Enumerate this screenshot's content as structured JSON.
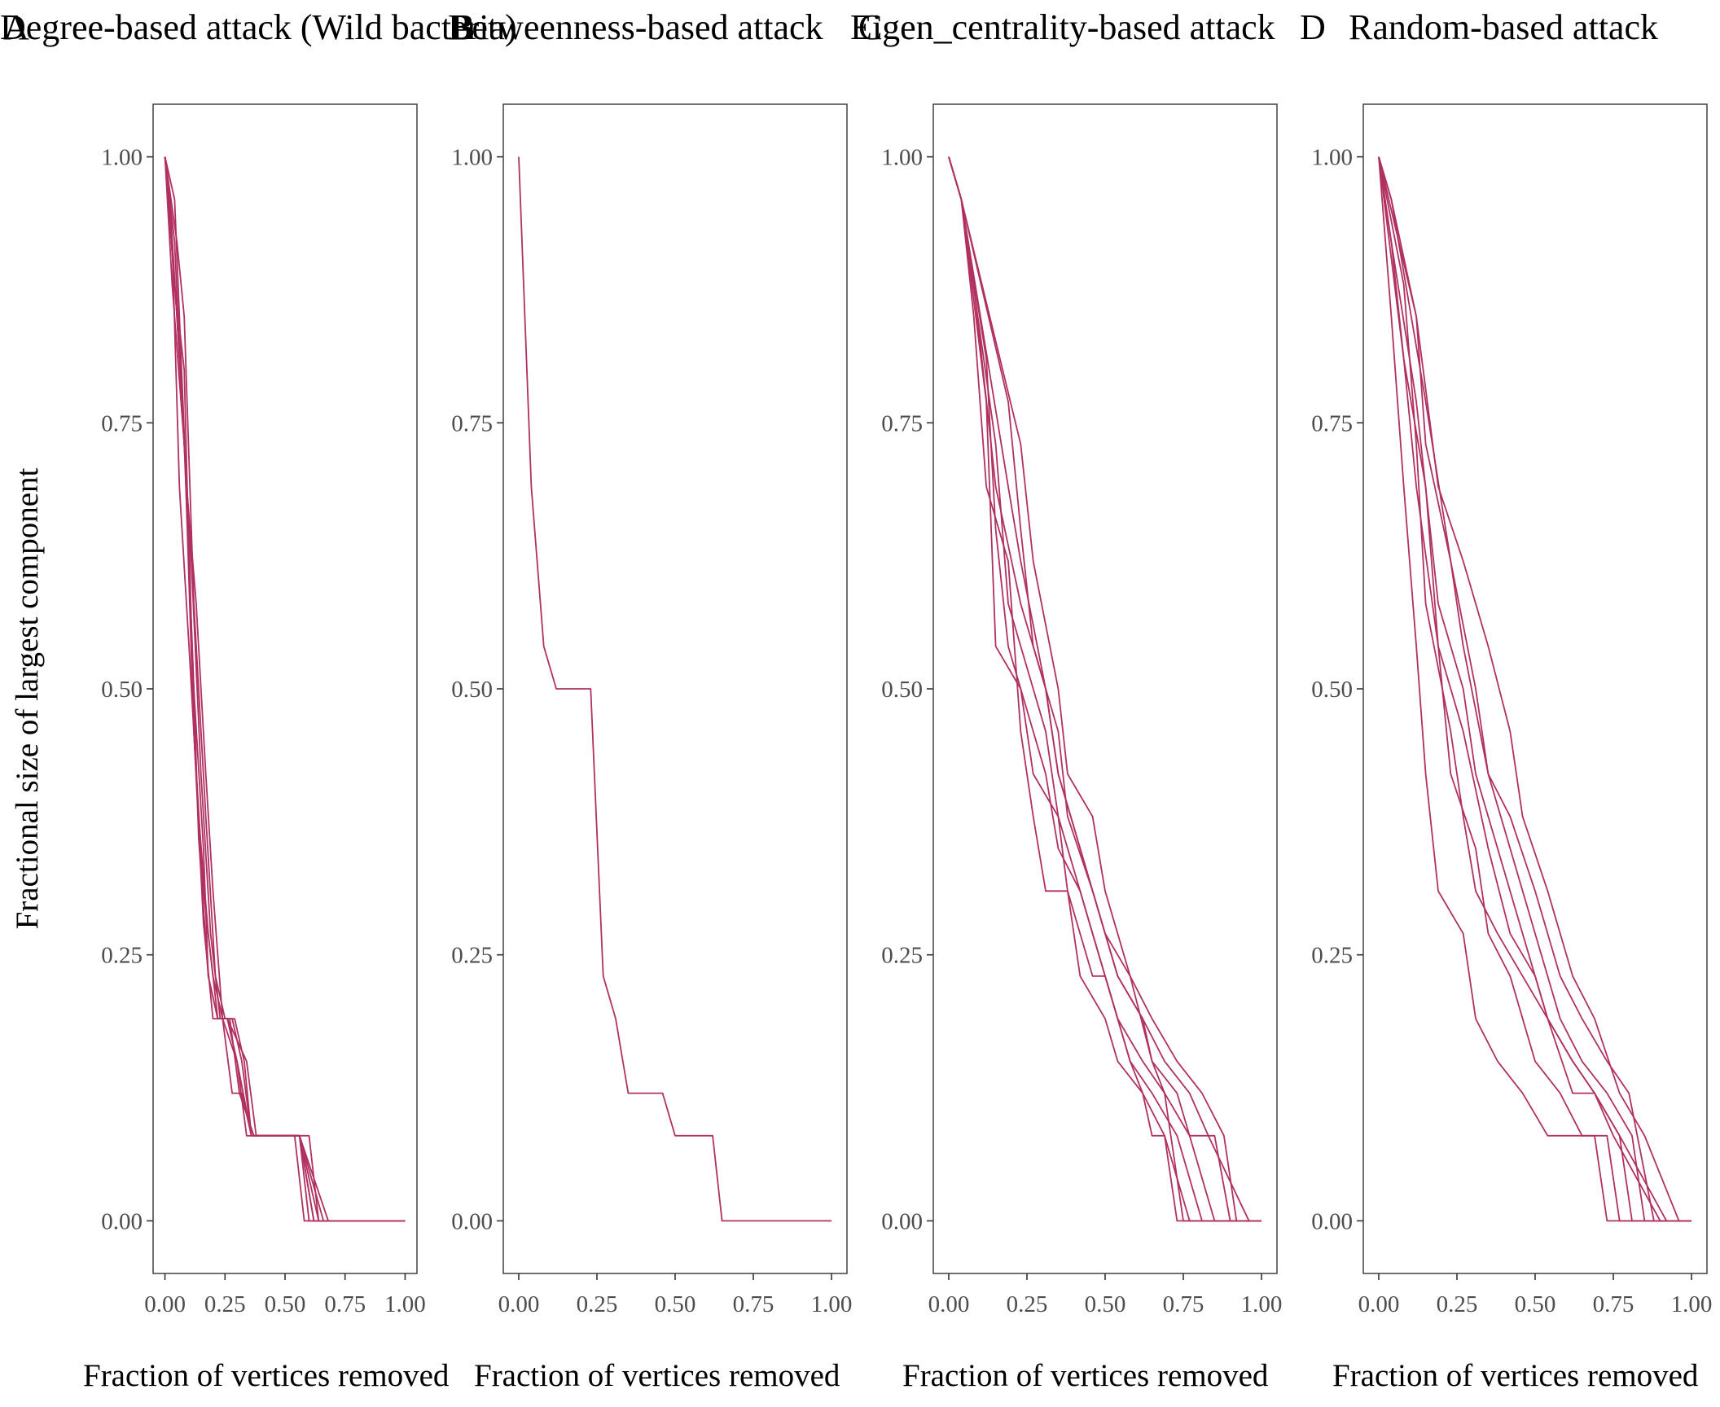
{
  "chart_data": [
    {
      "type": "line",
      "title": "Degree-based attack (Wild bacteria)",
      "tag": "A",
      "xlabel": "Fraction of vertices removed",
      "ylabel": "Fractional size of largest component",
      "xlim": [
        0,
        1
      ],
      "ylim": [
        0,
        1
      ],
      "x_ticks": [
        "0.00",
        "0.25",
        "0.50",
        "0.75",
        "1.00"
      ],
      "y_ticks": [
        "0.00",
        "0.25",
        "0.50",
        "0.75",
        "1.00"
      ],
      "grid": false,
      "color": "#b03060",
      "series": [
        {
          "x": [
            0,
            0.04,
            0.08,
            0.12,
            0.16,
            0.2,
            0.24,
            0.28,
            0.32,
            0.36,
            0.52,
            0.6,
            0.64,
            1.0
          ],
          "y": [
            1,
            0.96,
            0.74,
            0.46,
            0.28,
            0.19,
            0.19,
            0.12,
            0.12,
            0.08,
            0.08,
            0.08,
            0,
            0
          ]
        },
        {
          "x": [
            0,
            0.04,
            0.08,
            0.1,
            0.12,
            0.14,
            0.18,
            0.22,
            0.26,
            0.3,
            0.36,
            0.54,
            0.58,
            1.0
          ],
          "y": [
            1,
            0.88,
            0.8,
            0.62,
            0.5,
            0.36,
            0.23,
            0.19,
            0.19,
            0.15,
            0.08,
            0.08,
            0,
            0
          ]
        },
        {
          "x": [
            0,
            0.03,
            0.06,
            0.1,
            0.14,
            0.18,
            0.22,
            0.26,
            0.34,
            0.38,
            0.56,
            0.62,
            1.0
          ],
          "y": [
            1,
            0.92,
            0.69,
            0.54,
            0.38,
            0.27,
            0.19,
            0.19,
            0.15,
            0.08,
            0.08,
            0,
            0
          ]
        },
        {
          "x": [
            0,
            0.05,
            0.09,
            0.13,
            0.17,
            0.2,
            0.24,
            0.28,
            0.32,
            0.36,
            0.56,
            0.66,
            1.0
          ],
          "y": [
            1,
            0.85,
            0.69,
            0.58,
            0.42,
            0.31,
            0.19,
            0.19,
            0.15,
            0.08,
            0.08,
            0,
            0
          ]
        },
        {
          "x": [
            0,
            0.02,
            0.06,
            0.1,
            0.12,
            0.16,
            0.2,
            0.24,
            0.3,
            0.36,
            0.56,
            0.68,
            1.0
          ],
          "y": [
            1,
            0.96,
            0.81,
            0.65,
            0.46,
            0.31,
            0.23,
            0.19,
            0.15,
            0.08,
            0.08,
            0,
            0
          ]
        },
        {
          "x": [
            0,
            0.04,
            0.07,
            0.11,
            0.15,
            0.19,
            0.23,
            0.27,
            0.31,
            0.37,
            0.56,
            0.64,
            1.0
          ],
          "y": [
            1,
            0.92,
            0.77,
            0.62,
            0.42,
            0.27,
            0.19,
            0.19,
            0.12,
            0.08,
            0.08,
            0,
            0
          ]
        },
        {
          "x": [
            0,
            0.03,
            0.08,
            0.12,
            0.16,
            0.18,
            0.22,
            0.26,
            0.3,
            0.34,
            0.56,
            0.62,
            1.0
          ],
          "y": [
            1,
            0.88,
            0.73,
            0.5,
            0.35,
            0.23,
            0.19,
            0.19,
            0.15,
            0.08,
            0.08,
            0,
            0
          ]
        },
        {
          "x": [
            0,
            0.05,
            0.08,
            0.12,
            0.17,
            0.21,
            0.25,
            0.29,
            0.33,
            0.36,
            0.56,
            0.6,
            1.0
          ],
          "y": [
            1,
            0.92,
            0.85,
            0.58,
            0.38,
            0.23,
            0.19,
            0.19,
            0.15,
            0.08,
            0.08,
            0,
            0
          ]
        }
      ]
    },
    {
      "type": "line",
      "title": "Betweenness-based attack",
      "tag": "B",
      "xlabel": "Fraction of vertices removed",
      "xlim": [
        0,
        1
      ],
      "ylim": [
        0,
        1
      ],
      "x_ticks": [
        "0.00",
        "0.25",
        "0.50",
        "0.75",
        "1.00"
      ],
      "y_ticks": [
        "0.00",
        "0.25",
        "0.50",
        "0.75",
        "1.00"
      ],
      "grid": false,
      "color": "#b03060",
      "series": [
        {
          "x": [
            0,
            0.04,
            0.08,
            0.12,
            0.23,
            0.27,
            0.31,
            0.35,
            0.46,
            0.5,
            0.62,
            0.65,
            1.0
          ],
          "y": [
            1,
            0.69,
            0.54,
            0.5,
            0.5,
            0.23,
            0.19,
            0.12,
            0.12,
            0.08,
            0.08,
            0,
            0
          ]
        }
      ]
    },
    {
      "type": "line",
      "title": "Eigen_centrality-based attack",
      "tag": "C",
      "xlabel": "Fraction of vertices removed",
      "xlim": [
        0,
        1
      ],
      "ylim": [
        0,
        1
      ],
      "x_ticks": [
        "0.00",
        "0.25",
        "0.50",
        "0.75",
        "1.00"
      ],
      "y_ticks": [
        "0.00",
        "0.25",
        "0.50",
        "0.75",
        "1.00"
      ],
      "grid": false,
      "color": "#b03060",
      "series": [
        {
          "x": [
            0,
            0.04,
            0.08,
            0.12,
            0.19,
            0.23,
            0.27,
            0.31,
            0.38,
            0.42,
            0.5,
            0.54,
            0.62,
            0.65,
            0.69,
            0.73,
            1.0
          ],
          "y": [
            1,
            0.96,
            0.85,
            0.69,
            0.62,
            0.46,
            0.38,
            0.31,
            0.31,
            0.23,
            0.19,
            0.15,
            0.12,
            0.08,
            0.08,
            0,
            0
          ]
        },
        {
          "x": [
            0,
            0.04,
            0.12,
            0.15,
            0.23,
            0.27,
            0.35,
            0.38,
            0.46,
            0.5,
            0.58,
            0.62,
            0.69,
            0.77,
            1.0
          ],
          "y": [
            1,
            0.96,
            0.77,
            0.54,
            0.5,
            0.42,
            0.38,
            0.31,
            0.23,
            0.23,
            0.15,
            0.12,
            0.08,
            0,
            0
          ]
        },
        {
          "x": [
            0,
            0.04,
            0.15,
            0.19,
            0.27,
            0.31,
            0.35,
            0.42,
            0.46,
            0.54,
            0.58,
            0.65,
            0.73,
            0.81,
            1.0
          ],
          "y": [
            1,
            0.96,
            0.73,
            0.58,
            0.5,
            0.46,
            0.38,
            0.31,
            0.27,
            0.19,
            0.15,
            0.12,
            0.08,
            0,
            0
          ]
        },
        {
          "x": [
            0,
            0.04,
            0.19,
            0.23,
            0.31,
            0.35,
            0.42,
            0.5,
            0.54,
            0.62,
            0.65,
            0.73,
            0.77,
            0.85,
            1.0
          ],
          "y": [
            1,
            0.96,
            0.69,
            0.62,
            0.5,
            0.42,
            0.35,
            0.27,
            0.23,
            0.19,
            0.15,
            0.12,
            0.08,
            0,
            0
          ]
        },
        {
          "x": [
            0,
            0.04,
            0.23,
            0.27,
            0.35,
            0.38,
            0.46,
            0.5,
            0.58,
            0.65,
            0.73,
            0.81,
            0.88,
            0.92,
            1.0
          ],
          "y": [
            1,
            0.96,
            0.73,
            0.62,
            0.5,
            0.42,
            0.38,
            0.31,
            0.23,
            0.19,
            0.15,
            0.12,
            0.08,
            0,
            0
          ]
        },
        {
          "x": [
            0,
            0.04,
            0.12,
            0.15,
            0.19,
            0.27,
            0.31,
            0.35,
            0.42,
            0.46,
            0.5,
            0.54,
            0.62,
            0.69,
            0.75,
            1.0
          ],
          "y": [
            1,
            0.96,
            0.81,
            0.65,
            0.54,
            0.46,
            0.42,
            0.35,
            0.31,
            0.27,
            0.23,
            0.19,
            0.15,
            0.12,
            0,
            0
          ]
        },
        {
          "x": [
            0,
            0.04,
            0.08,
            0.15,
            0.23,
            0.31,
            0.35,
            0.42,
            0.5,
            0.58,
            0.65,
            0.69,
            0.77,
            0.85,
            0.9,
            1.0
          ],
          "y": [
            1,
            0.96,
            0.88,
            0.69,
            0.58,
            0.5,
            0.42,
            0.35,
            0.27,
            0.23,
            0.15,
            0.12,
            0.08,
            0.08,
            0,
            0
          ]
        },
        {
          "x": [
            0,
            0.04,
            0.19,
            0.23,
            0.27,
            0.35,
            0.38,
            0.46,
            0.54,
            0.62,
            0.69,
            0.77,
            0.83,
            0.96,
            1.0
          ],
          "y": [
            1,
            0.96,
            0.77,
            0.65,
            0.54,
            0.46,
            0.38,
            0.31,
            0.23,
            0.19,
            0.15,
            0.12,
            0.08,
            0,
            0
          ]
        }
      ]
    },
    {
      "type": "line",
      "title": "Random-based attack",
      "tag": "D",
      "xlabel": "Fraction of vertices removed",
      "xlim": [
        0,
        1
      ],
      "ylim": [
        0,
        1
      ],
      "x_ticks": [
        "0.00",
        "0.25",
        "0.50",
        "0.75",
        "1.00"
      ],
      "y_ticks": [
        "0.00",
        "0.25",
        "0.50",
        "0.75",
        "1.00"
      ],
      "grid": false,
      "color": "#b03060",
      "series": [
        {
          "x": [
            0,
            0.04,
            0.08,
            0.12,
            0.15,
            0.19,
            0.27,
            0.31,
            0.38,
            0.46,
            0.54,
            0.62,
            0.69,
            0.73,
            1.0
          ],
          "y": [
            1,
            0.85,
            0.69,
            0.54,
            0.42,
            0.31,
            0.27,
            0.19,
            0.15,
            0.12,
            0.08,
            0.08,
            0.08,
            0,
            0
          ]
        },
        {
          "x": [
            0,
            0.08,
            0.12,
            0.19,
            0.23,
            0.31,
            0.35,
            0.42,
            0.5,
            0.58,
            0.65,
            0.73,
            0.77,
            1.0
          ],
          "y": [
            1,
            0.81,
            0.69,
            0.54,
            0.42,
            0.35,
            0.27,
            0.23,
            0.15,
            0.12,
            0.08,
            0.08,
            0,
            0
          ]
        },
        {
          "x": [
            0,
            0.04,
            0.12,
            0.19,
            0.27,
            0.31,
            0.38,
            0.46,
            0.54,
            0.62,
            0.69,
            0.77,
            0.81,
            1.0
          ],
          "y": [
            1,
            0.92,
            0.77,
            0.58,
            0.5,
            0.42,
            0.35,
            0.27,
            0.19,
            0.15,
            0.12,
            0.08,
            0,
            0
          ]
        },
        {
          "x": [
            0,
            0.12,
            0.15,
            0.23,
            0.27,
            0.35,
            0.42,
            0.5,
            0.58,
            0.65,
            0.73,
            0.81,
            0.85,
            1.0
          ],
          "y": [
            1,
            0.85,
            0.73,
            0.62,
            0.54,
            0.42,
            0.35,
            0.27,
            0.19,
            0.15,
            0.12,
            0.08,
            0,
            0
          ]
        },
        {
          "x": [
            0,
            0.04,
            0.15,
            0.23,
            0.31,
            0.35,
            0.42,
            0.5,
            0.58,
            0.65,
            0.73,
            0.8,
            0.88,
            1.0
          ],
          "y": [
            1,
            0.96,
            0.77,
            0.62,
            0.5,
            0.42,
            0.38,
            0.31,
            0.23,
            0.19,
            0.15,
            0.12,
            0,
            0
          ]
        },
        {
          "x": [
            0,
            0.08,
            0.12,
            0.15,
            0.23,
            0.27,
            0.31,
            0.38,
            0.46,
            0.54,
            0.62,
            0.69,
            0.77,
            0.92,
            1.0
          ],
          "y": [
            1,
            0.88,
            0.73,
            0.58,
            0.46,
            0.38,
            0.31,
            0.27,
            0.23,
            0.19,
            0.12,
            0.12,
            0.08,
            0,
            0
          ]
        },
        {
          "x": [
            0,
            0.04,
            0.08,
            0.15,
            0.19,
            0.27,
            0.35,
            0.42,
            0.5,
            0.54,
            0.62,
            0.69,
            0.75,
            0.9,
            1.0
          ],
          "y": [
            1,
            0.92,
            0.81,
            0.69,
            0.54,
            0.46,
            0.35,
            0.27,
            0.23,
            0.19,
            0.15,
            0.12,
            0.08,
            0,
            0
          ]
        },
        {
          "x": [
            0,
            0.04,
            0.12,
            0.19,
            0.27,
            0.35,
            0.42,
            0.46,
            0.54,
            0.62,
            0.69,
            0.77,
            0.85,
            0.96,
            1.0
          ],
          "y": [
            1,
            0.96,
            0.85,
            0.69,
            0.62,
            0.54,
            0.46,
            0.38,
            0.31,
            0.23,
            0.19,
            0.12,
            0.08,
            0,
            0
          ]
        }
      ]
    }
  ]
}
